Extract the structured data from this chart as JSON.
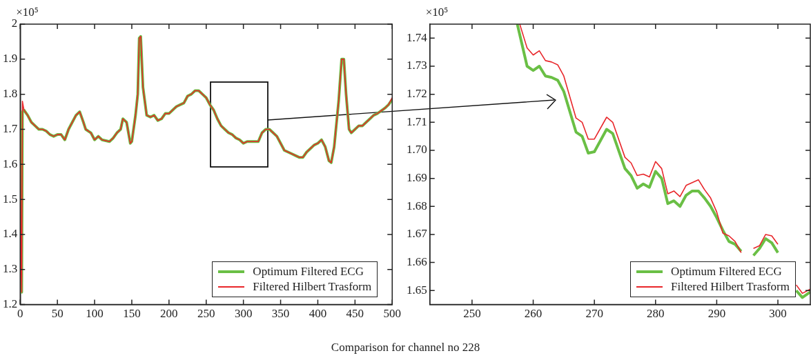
{
  "chart_data": [
    {
      "type": "line",
      "ylabel": "×10⁵",
      "annotations": [
        "Comparison for channel no 228"
      ],
      "xlim": [
        0,
        500
      ],
      "xticks": [
        0,
        50,
        100,
        150,
        200,
        250,
        300,
        350,
        400,
        450,
        500
      ],
      "ylim": [
        1.2,
        2
      ],
      "yticks": [
        1.2,
        1.3,
        1.4,
        1.5,
        1.6,
        1.7,
        1.8,
        1.9,
        2
      ],
      "legend": "bottom right",
      "marker": "none",
      "line_style": "solid",
      "grid": false,
      "x": [
        0,
        1,
        2,
        3,
        5,
        10,
        15,
        20,
        25,
        30,
        35,
        40,
        45,
        50,
        55,
        60,
        65,
        70,
        75,
        80,
        85,
        88,
        95,
        100,
        105,
        110,
        120,
        125,
        130,
        135,
        138,
        143,
        148,
        150,
        155,
        158,
        160,
        162,
        165,
        170,
        175,
        180,
        185,
        190,
        195,
        200,
        205,
        210,
        215,
        220,
        225,
        230,
        235,
        240,
        245,
        250,
        255,
        260,
        265,
        270,
        275,
        280,
        285,
        290,
        295,
        300,
        305,
        310,
        315,
        320,
        325,
        330,
        335,
        340,
        345,
        350,
        355,
        360,
        365,
        370,
        375,
        380,
        385,
        390,
        395,
        400,
        405,
        410,
        415,
        418,
        422,
        428,
        432,
        435,
        438,
        442,
        445,
        450,
        455,
        460,
        465,
        470,
        475,
        480,
        490,
        495,
        500
      ],
      "series": [
        {
          "name": "Optimum Filtered ECG",
          "color": "#6abf45",
          "values": [
            1.75,
            1.33,
            1.235,
            1.75,
            1.755,
            1.74,
            1.72,
            1.71,
            1.7,
            1.7,
            1.695,
            1.685,
            1.68,
            1.685,
            1.685,
            1.67,
            1.7,
            1.72,
            1.74,
            1.75,
            1.72,
            1.7,
            1.69,
            1.67,
            1.68,
            1.67,
            1.665,
            1.675,
            1.69,
            1.7,
            1.73,
            1.72,
            1.66,
            1.665,
            1.74,
            1.8,
            1.96,
            1.965,
            1.82,
            1.74,
            1.735,
            1.74,
            1.725,
            1.73,
            1.745,
            1.745,
            1.755,
            1.765,
            1.77,
            1.775,
            1.795,
            1.8,
            1.81,
            1.81,
            1.8,
            1.79,
            1.77,
            1.755,
            1.73,
            1.71,
            1.7,
            1.69,
            1.685,
            1.675,
            1.67,
            1.66,
            1.665,
            1.665,
            1.665,
            1.665,
            1.69,
            1.7,
            1.7,
            1.69,
            1.68,
            1.66,
            1.64,
            1.635,
            1.63,
            1.625,
            1.62,
            1.62,
            1.635,
            1.645,
            1.655,
            1.66,
            1.67,
            1.65,
            1.61,
            1.605,
            1.65,
            1.78,
            1.9,
            1.9,
            1.8,
            1.7,
            1.69,
            1.7,
            1.71,
            1.71,
            1.72,
            1.73,
            1.74,
            1.745,
            1.76,
            1.77,
            1.785
          ]
        },
        {
          "name": "Filtered Hilbert Trasform",
          "color": "#e8262a",
          "values": [
            1.75,
            1.33,
            1.235,
            1.78,
            1.755,
            1.74,
            1.72,
            1.71,
            1.7,
            1.7,
            1.695,
            1.685,
            1.68,
            1.685,
            1.685,
            1.67,
            1.7,
            1.72,
            1.74,
            1.75,
            1.72,
            1.7,
            1.69,
            1.67,
            1.68,
            1.67,
            1.665,
            1.675,
            1.69,
            1.7,
            1.73,
            1.72,
            1.66,
            1.665,
            1.74,
            1.8,
            1.96,
            1.965,
            1.82,
            1.74,
            1.735,
            1.74,
            1.725,
            1.73,
            1.745,
            1.745,
            1.755,
            1.765,
            1.77,
            1.775,
            1.795,
            1.8,
            1.81,
            1.81,
            1.8,
            1.79,
            1.77,
            1.755,
            1.73,
            1.71,
            1.7,
            1.69,
            1.685,
            1.675,
            1.67,
            1.66,
            1.665,
            1.665,
            1.665,
            1.665,
            1.69,
            1.7,
            1.7,
            1.69,
            1.68,
            1.66,
            1.64,
            1.635,
            1.63,
            1.625,
            1.62,
            1.62,
            1.635,
            1.645,
            1.655,
            1.66,
            1.67,
            1.65,
            1.61,
            1.605,
            1.65,
            1.78,
            1.9,
            1.9,
            1.8,
            1.7,
            1.69,
            1.7,
            1.71,
            1.71,
            1.72,
            1.73,
            1.74,
            1.745,
            1.76,
            1.77,
            1.79
          ]
        }
      ]
    },
    {
      "type": "line",
      "ylabel": "×10⁵",
      "xlim": [
        243.1,
        305.3
      ],
      "xticks": [
        250,
        260,
        270,
        280,
        290,
        300
      ],
      "ylim": [
        1.645,
        1.745
      ],
      "yticks": [
        1.65,
        1.66,
        1.67,
        1.68,
        1.69,
        {
          "value": 1.7,
          "label": "1.70"
        },
        1.71,
        1.72,
        1.73,
        1.74
      ],
      "legend": "bottom right",
      "marker": "none",
      "line_style": "solid",
      "grid": false,
      "series": [
        {
          "name": "Optimum Filtered ECG",
          "color": "#6abf45",
          "x": [
            257.4,
            259,
            260,
            261,
            262,
            263,
            264,
            265,
            267,
            268,
            269,
            270,
            272,
            273,
            275,
            276,
            277,
            278,
            279,
            280,
            281,
            282,
            283,
            284,
            285,
            286,
            287,
            288,
            289,
            290,
            291,
            292,
            293,
            294,
            295,
            296,
            297,
            298,
            299,
            300,
            301,
            302,
            303,
            304,
            305.3
          ],
          "values": [
            1.745,
            1.73,
            1.7285,
            1.73,
            1.7265,
            1.726,
            1.725,
            1.721,
            1.7065,
            1.705,
            1.699,
            1.6995,
            1.7075,
            1.706,
            1.6935,
            1.691,
            1.6865,
            1.688,
            1.6868,
            1.6925,
            1.69,
            1.681,
            1.682,
            1.68,
            1.684,
            1.6855,
            1.6855,
            1.683,
            1.68,
            1.676,
            1.6715,
            1.6675,
            1.6665,
            1.664,
            null,
            1.6625,
            1.665,
            1.6685,
            1.667,
            1.6635,
            null,
            null,
            1.65,
            1.6475,
            1.6495
          ]
        },
        {
          "name": "Filtered Hilbert Trasform",
          "color": "#e8262a",
          "x": [
            257.8,
            259,
            260,
            261,
            262,
            263,
            264,
            265,
            267,
            268,
            269,
            270,
            272,
            273,
            275,
            276,
            277,
            278,
            279,
            280,
            281,
            282,
            283,
            284,
            285,
            286,
            287,
            288,
            289,
            290,
            291,
            292,
            293,
            294,
            295,
            296,
            297,
            298,
            299,
            300,
            301,
            302,
            303,
            304,
            305.3
          ],
          "values": [
            1.745,
            1.7365,
            1.734,
            1.7355,
            1.732,
            1.7315,
            1.7305,
            1.7265,
            1.7115,
            1.71,
            1.704,
            1.704,
            1.7118,
            1.71,
            1.6975,
            1.6955,
            1.691,
            1.6915,
            1.6905,
            1.696,
            1.6935,
            1.6845,
            1.6855,
            1.6835,
            1.6875,
            1.6885,
            1.6895,
            1.686,
            1.683,
            1.678,
            1.6705,
            1.6695,
            1.6675,
            1.6635,
            null,
            1.665,
            1.666,
            1.67,
            1.6695,
            1.6665,
            null,
            null,
            1.652,
            1.649,
            1.6505
          ]
        }
      ]
    }
  ]
}
